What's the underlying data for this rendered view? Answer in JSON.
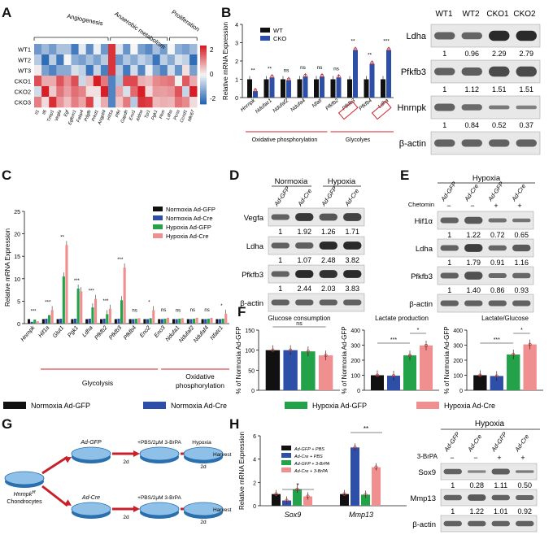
{
  "panels": {
    "A": "A",
    "B": "B",
    "C": "C",
    "D": "D",
    "E": "E",
    "F": "F",
    "G": "G",
    "H": "H"
  },
  "colors": {
    "wt": "#111111",
    "cko": "#2e4fa8",
    "normoxia_gfp": "#111111",
    "normoxia_cre": "#2e4fa8",
    "hypoxia_gfp": "#23a24a",
    "hypoxia_cre": "#ef8f8f",
    "red": "#d2222a",
    "band": "#2a2a2a",
    "blot_bg": "#e8e8e8"
  },
  "heatmap": {
    "group_labels": [
      "Angiogenesis",
      "Anaerobic metabolism",
      "Proliferation"
    ],
    "rows": [
      "WT1",
      "WT2",
      "WT3",
      "CKO1",
      "CKO2",
      "CKO3"
    ],
    "columns": [
      "Il1",
      "Il6",
      "Timp1",
      "Vegfa",
      "Egf",
      "Egfem1",
      "Fabp4",
      "Pdgfb",
      "Prkd1",
      "Angptl4",
      "Hif1a",
      "Pfkl",
      "Gapdh",
      "Eno1",
      "Aldoa",
      "Tpi1",
      "Pgk1",
      "Pkm",
      "Ldha",
      "Pcna",
      "Ccnd1",
      "Mki67"
    ],
    "legend_ticks": [
      "2",
      "0",
      "-2"
    ]
  },
  "chart_data": [
    {
      "id": "B",
      "type": "bar",
      "ylabel": "Relative mRNA Expression",
      "ylim": [
        0,
        4
      ],
      "yticks": [
        "0",
        "1",
        "2",
        "3",
        "4"
      ],
      "legend": [
        "WT",
        "CKO"
      ],
      "categories": [
        "Hnrnpk",
        "Ndufac1",
        "Ndufaf2",
        "Ndufa4",
        "Nfatl",
        "Pfkfb2",
        "Pfkfb3",
        "Pfkfb4",
        "Ldha"
      ],
      "series": [
        {
          "name": "WT",
          "values": [
            1,
            1,
            1,
            1,
            1,
            1,
            1,
            1,
            1
          ]
        },
        {
          "name": "CKO",
          "values": [
            0.35,
            1.1,
            0.95,
            1.15,
            1.15,
            1.1,
            2.6,
            1.85,
            2.6
          ]
        }
      ],
      "significance": [
        "**",
        "**",
        "ns",
        "ns",
        "ns",
        "ns",
        "**",
        "**",
        "***"
      ],
      "groups": [
        "Oxidative phosphorylation",
        "Glycolyes"
      ]
    },
    {
      "id": "C",
      "type": "bar",
      "ylabel": "Relative mRNA Expression",
      "ylim": [
        0,
        25
      ],
      "yticks": [
        "0",
        "5",
        "10",
        "15",
        "20",
        "25"
      ],
      "legend": [
        "Normoxia Ad-GFP",
        "Normoxia Ad-Cre",
        "Hypoxia Ad-GFP",
        "Hypoxia Ad-Cre"
      ],
      "categories": [
        "Hnrnpk",
        "Hif1a",
        "Glut1",
        "Pgk1",
        "Ldha",
        "Pfkfb2",
        "Pfkfb3",
        "Pfkfb4",
        "Eno2",
        "Eno3",
        "Ndufa1",
        "Ndufaf2",
        "Ndufaf4",
        "Nfatc1"
      ],
      "series": [
        {
          "name": "Normoxia Ad-GFP",
          "values": [
            1,
            1,
            1,
            1,
            1,
            1,
            1,
            1,
            1,
            1,
            1,
            1,
            1,
            1
          ]
        },
        {
          "name": "Normoxia Ad-Cre",
          "values": [
            0.4,
            1.1,
            1.1,
            1.1,
            1.1,
            1.1,
            1.1,
            1.0,
            1.0,
            1.0,
            1.0,
            1.0,
            1.0,
            1.0
          ]
        },
        {
          "name": "Hypoxia Ad-GFP",
          "values": [
            0.9,
            1.9,
            10.5,
            7.8,
            3.6,
            2.1,
            5.2,
            1.1,
            1.2,
            1.1,
            1.1,
            1.1,
            1.1,
            1.1
          ]
        },
        {
          "name": "Hypoxia Ad-Cre",
          "values": [
            0.5,
            3.0,
            17.5,
            7.2,
            5.5,
            3.3,
            12.5,
            1.2,
            3.0,
            1.3,
            1.2,
            1.3,
            1.3,
            2.2
          ]
        }
      ],
      "significance": [
        "***",
        "***",
        "**",
        "***",
        "***",
        "***",
        "***",
        "ns",
        "*",
        "ns",
        "ns",
        "ns",
        "ns",
        "*"
      ],
      "groups": [
        "Glycolysis",
        "Oxidative phosphorylation"
      ]
    },
    {
      "id": "F1",
      "type": "bar",
      "title": "Glucose consumption",
      "ylabel": "% of Normoxia Ad-GFP",
      "ylim": [
        0,
        150
      ],
      "yticks": [
        "0",
        "50",
        "100",
        "150"
      ],
      "categories": [
        "Normoxia Ad-GFP",
        "Normoxia Ad-Cre",
        "Hypoxia Ad-GFP",
        "Hypoxia Ad-Cre"
      ],
      "values": [
        100,
        100,
        97,
        87
      ],
      "significance": [
        "ns"
      ]
    },
    {
      "id": "F2",
      "type": "bar",
      "title": "Lactate production",
      "ylabel": "% of Normoxia Ad-GFP",
      "ylim": [
        0,
        400
      ],
      "yticks": [
        "0",
        "100",
        "200",
        "300",
        "400"
      ],
      "categories": [
        "Normoxia Ad-GFP",
        "Normoxia Ad-Cre",
        "Hypoxia Ad-GFP",
        "Hypoxia Ad-Cre"
      ],
      "values": [
        100,
        97,
        232,
        298
      ],
      "significance": [
        "***",
        "*"
      ]
    },
    {
      "id": "F3",
      "type": "bar",
      "title": "Lactate/Glucose",
      "ylabel": "% of Normoxia Ad-GFP",
      "ylim": [
        0,
        400
      ],
      "yticks": [
        "0",
        "100",
        "200",
        "300",
        "400"
      ],
      "categories": [
        "Normoxia Ad-GFP",
        "Normoxia Ad-Cre",
        "Hypoxia Ad-GFP",
        "Hypoxia Ad-Cre"
      ],
      "values": [
        100,
        95,
        238,
        305
      ],
      "significance": [
        "***",
        "*"
      ]
    },
    {
      "id": "H",
      "type": "bar",
      "ylabel": "Relative mRNA Expression",
      "ylim": [
        0,
        6
      ],
      "yticks": [
        "0",
        "2",
        "4",
        "6"
      ],
      "legend": [
        "Ad-GFP + PBS",
        "Ad-Cre + PBS",
        "Ad-GFP + 3-BrPA",
        "Ad-Cre + 3-BrPA"
      ],
      "categories": [
        "Sox9",
        "Mmp13"
      ],
      "series": [
        {
          "name": "Ad-GFP + PBS",
          "values": [
            1.0,
            1.0
          ]
        },
        {
          "name": "Ad-Cre + PBS",
          "values": [
            0.45,
            5.0
          ]
        },
        {
          "name": "Ad-GFP + 3-BrPA",
          "values": [
            1.4,
            0.95
          ]
        },
        {
          "name": "Ad-Cre + 3-BrPA",
          "values": [
            0.8,
            3.3
          ]
        }
      ],
      "significance": [
        "*",
        "**"
      ]
    }
  ],
  "blotB": {
    "lanes": [
      "WT1",
      "WT2",
      "CKO1",
      "CKO2"
    ],
    "rows": [
      {
        "label": "Ldha",
        "values": [
          "1",
          "0.96",
          "2.29",
          "2.79"
        ]
      },
      {
        "label": "Pfkfb3",
        "values": [
          "1",
          "1.12",
          "1.51",
          "1.51"
        ]
      },
      {
        "label": "Hnrnpk",
        "values": [
          "1",
          "0.84",
          "0.52",
          "0.37"
        ]
      },
      {
        "label": "β-actin",
        "values": []
      }
    ]
  },
  "blotD": {
    "conditions": [
      "Normoxia",
      "Hypoxia"
    ],
    "lanes": [
      "Ad-GFP",
      "Ad-Cre",
      "Ad-GFP",
      "Ad-Cre"
    ],
    "rows": [
      {
        "label": "Vegfa",
        "values": [
          "1",
          "1.92",
          "1.26",
          "1.71"
        ]
      },
      {
        "label": "Ldha",
        "values": [
          "1",
          "1.07",
          "2.48",
          "3.82"
        ]
      },
      {
        "label": "Pfkfb3",
        "values": [
          "1",
          "2.44",
          "2.03",
          "3.83"
        ]
      },
      {
        "label": "β-actin",
        "values": []
      }
    ]
  },
  "blotE": {
    "condition": "Hypoxia",
    "lanes": [
      "Ad-GFP",
      "Ad-Cre",
      "Ad-GFP",
      "Ad-Cre"
    ],
    "treatment_label": "Chetomin",
    "treatment": [
      "−",
      "−",
      "+",
      "+"
    ],
    "rows": [
      {
        "label": "Hif1α",
        "values": [
          "1",
          "1.22",
          "0.72",
          "0.65"
        ]
      },
      {
        "label": "Ldha",
        "values": [
          "1",
          "1.79",
          "0.91",
          "1.16"
        ]
      },
      {
        "label": "Pfkfb3",
        "values": [
          "1",
          "1.40",
          "0.86",
          "0.93"
        ]
      },
      {
        "label": "β-actin",
        "values": []
      }
    ]
  },
  "blotH": {
    "condition": "Hypoxia",
    "lanes": [
      "Ad-GFP",
      "Ad-Cre",
      "Ad-GFP",
      "Ad-Cre"
    ],
    "treatment_label": "3-BrPA",
    "treatment": [
      "−",
      "−",
      "+",
      "+"
    ],
    "rows": [
      {
        "label": "Sox9",
        "values": [
          "1",
          "0.28",
          "1.11",
          "0.50"
        ]
      },
      {
        "label": "Mmp13",
        "values": [
          "1",
          "1.22",
          "1.01",
          "0.92"
        ]
      },
      {
        "label": "β-actin",
        "values": []
      }
    ]
  },
  "f_legend": [
    "Normoxia Ad-GFP",
    "Normoxia Ad-Cre",
    "Hypoxia Ad-GFP",
    "Hypoxia Ad-Cre"
  ],
  "schemeG": {
    "source_line1": "Hnrnpk",
    "source_sup": "f/f",
    "source_line2": "Chondrocytes",
    "top_arm": "Ad-GFP",
    "bottom_arm": "Ad-Cre",
    "step": "+PBS/2μM 3-BrPA",
    "condition": "Hypoxia",
    "end": "Harvest",
    "duration": "2d"
  }
}
